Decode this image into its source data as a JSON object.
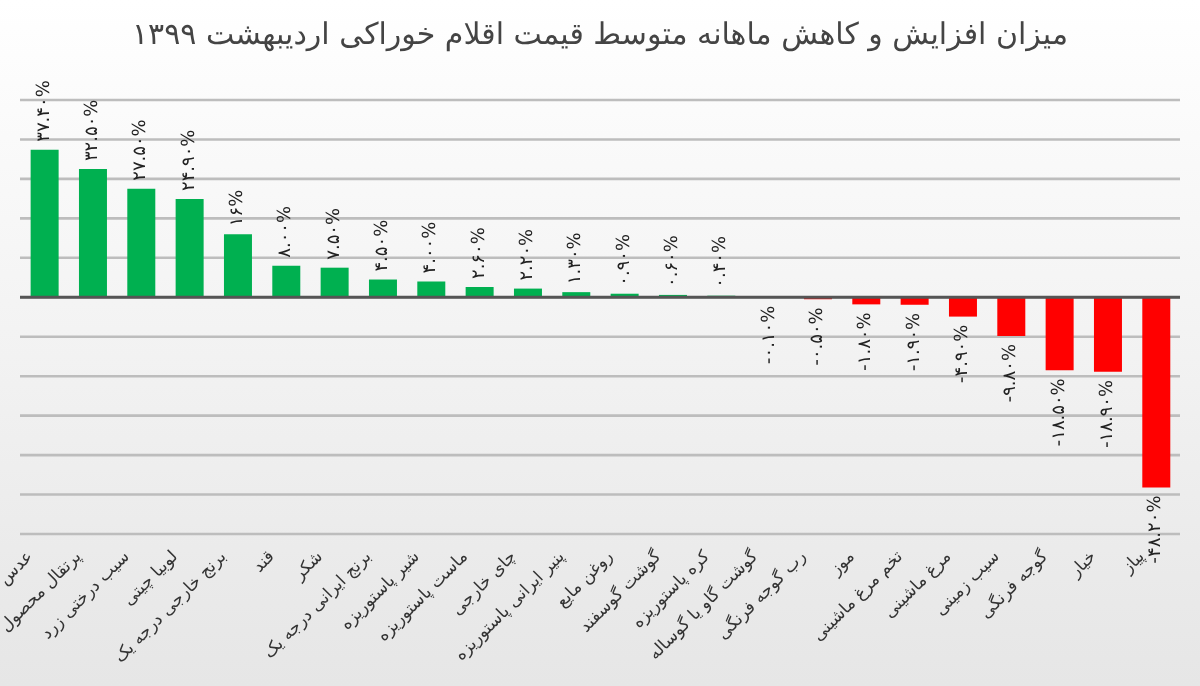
{
  "chart_data": {
    "type": "bar",
    "title": "میزان افزایش و کاهش ماهانه متوسط قیمت اقلام خوراکی اردیبهشت ۱۳۹۹",
    "categories": [
      "عدس",
      "پرتقال محصول",
      "سیب درختی زرد",
      "لوبیا چیتی",
      "برنج خارجی درجه یک",
      "قند",
      "شکر",
      "برنج ایرانی درجه یک",
      "شیر پاستوریزه",
      "ماست پاستوریزه",
      "چای خارجی",
      "پنیر ایرانی پاستوریزه",
      "روغن مایع",
      "گوشت گوسفند",
      "کره پاستوریزه",
      "گوشت گاو یا گوساله",
      "رب گوجه فرنگی",
      "موز",
      "تخم مرغ ماشینی",
      "مرغ ماشینی",
      "سیب زمینی",
      "گوجه فرنگی",
      "خیار",
      "پیاز"
    ],
    "values": [
      37.4,
      32.5,
      27.5,
      24.9,
      16,
      8,
      7.5,
      4.5,
      4,
      2.6,
      2.2,
      1.3,
      0.9,
      0.6,
      0.4,
      -0.1,
      -0.5,
      -1.8,
      -1.9,
      -4.9,
      -9.8,
      -18.5,
      -18.9,
      -48.2
    ],
    "value_labels": [
      "۳۷.۴۰%",
      "۳۲.۵۰%",
      "۲۷.۵۰%",
      "۲۴.۹۰%",
      "۱۶%",
      "۸.۰۰%",
      "۷.۵۰%",
      "۴.۵۰%",
      "۴.۰۰%",
      "۲.۶۰%",
      "۲.۲۰%",
      "۱.۳۰%",
      "۰.۹۰%",
      "۰.۶۰%",
      "۰.۴۰%",
      "-۰.۱۰%",
      "-۰.۵۰%",
      "-۱.۸۰%",
      "-۱.۹۰%",
      "-۴.۹۰%",
      "-۹.۸۰%",
      "-۱۸.۵۰%",
      "-۱۸.۹۰%",
      "-۴۸.۲۰%"
    ],
    "colors": [
      "#00b050",
      "#00b050",
      "#00b050",
      "#00b050",
      "#00b050",
      "#00b050",
      "#00b050",
      "#00b050",
      "#00b050",
      "#00b050",
      "#00b050",
      "#00b050",
      "#00b050",
      "#00b050",
      "#00b050",
      "#ff0000",
      "#ff0000",
      "#ff0000",
      "#ff0000",
      "#ff0000",
      "#ff0000",
      "#ff0000",
      "#ff0000",
      "#ff0000"
    ],
    "ylim": [
      -60,
      50
    ],
    "grid": "y",
    "tick_labels": "x",
    "legend": false
  }
}
